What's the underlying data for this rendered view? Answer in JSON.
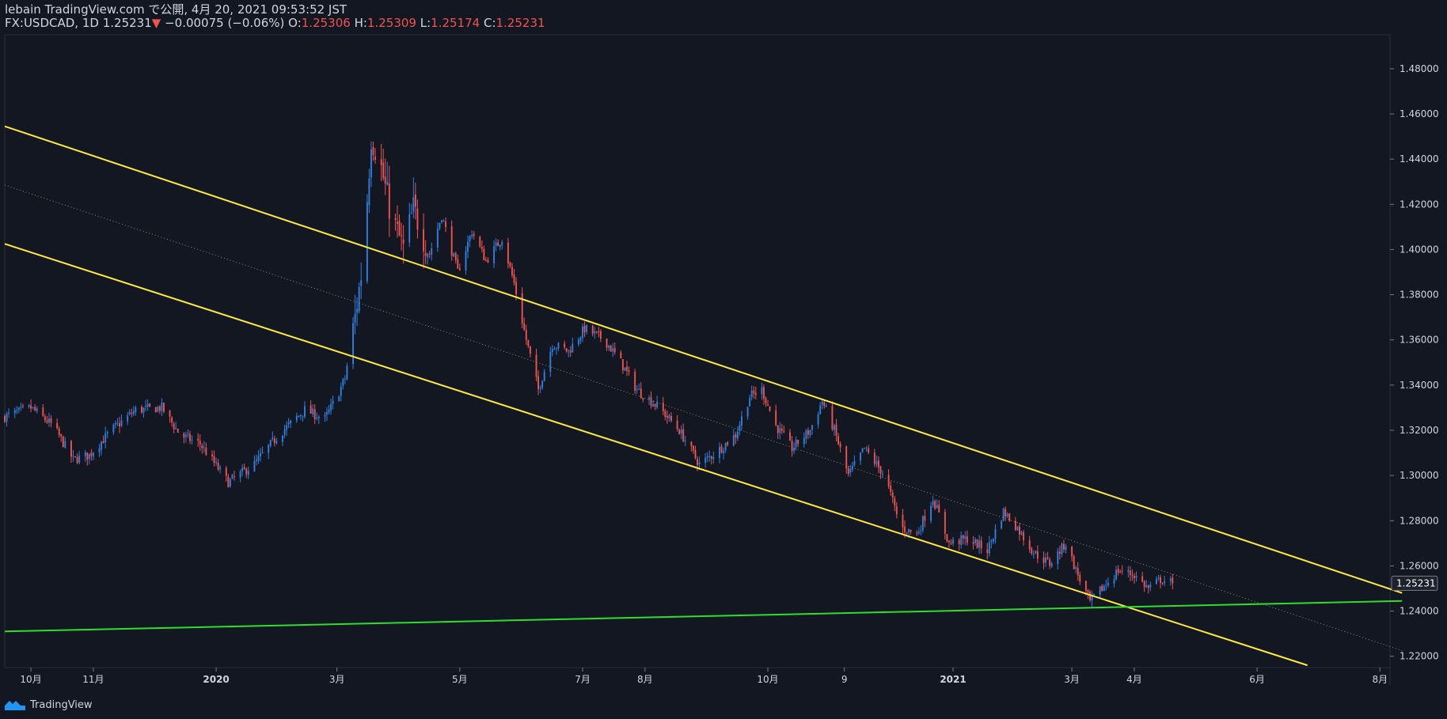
{
  "header": {
    "publisher_line": "lebain TradingView.com で公開, 4月 20, 2021 09:53:52 JST",
    "symbol": "FX:USDCAD, 1D",
    "last": "1.25231",
    "arrow": "▼",
    "change": "−0.00075 (−0.06%)",
    "o_label": "O:",
    "o_value": "1.25306",
    "h_label": "H:",
    "h_value": "1.25309",
    "l_label": "L:",
    "l_value": "1.25174",
    "c_label": "C:",
    "c_value": "1.25231"
  },
  "footer": {
    "brand": "TradingView",
    "logo_icon": "tradingview-logo-icon"
  },
  "colors": {
    "background": "#131722",
    "up": "#2f7fde",
    "down": "#ef5350",
    "channel": "#ffeb3b",
    "support": "#2ede2e",
    "axis_text": "#d1d4dc",
    "grid_border": "#2a2e39"
  },
  "chart_data": {
    "type": "candlestick",
    "symbol": "FX:USDCAD",
    "interval": "1D",
    "ylim": [
      1.215,
      1.495
    ],
    "xlim": [
      "2019-09-18",
      "2021-08-06"
    ],
    "y_ticks": [
      "1.22000",
      "1.24000",
      "1.26000",
      "1.28000",
      "1.30000",
      "1.32000",
      "1.34000",
      "1.36000",
      "1.38000",
      "1.40000",
      "1.42000",
      "1.44000",
      "1.46000",
      "1.48000"
    ],
    "x_ticks": [
      {
        "label": "10月",
        "date": "2019-10-01"
      },
      {
        "label": "11月",
        "date": "2019-11-01"
      },
      {
        "label": "2020",
        "date": "2020-01-01"
      },
      {
        "label": "3月",
        "date": "2020-03-01"
      },
      {
        "label": "5月",
        "date": "2020-05-01"
      },
      {
        "label": "7月",
        "date": "2020-07-01"
      },
      {
        "label": "8月",
        "date": "2020-08-01"
      },
      {
        "label": "10月",
        "date": "2020-10-01"
      },
      {
        "label": "9",
        "date": "2020-11-08"
      },
      {
        "label": "2021",
        "date": "2021-01-01"
      },
      {
        "label": "3月",
        "date": "2021-03-01"
      },
      {
        "label": "4月",
        "date": "2021-04-01"
      },
      {
        "label": "6月",
        "date": "2021-06-01"
      },
      {
        "label": "8月",
        "date": "2021-08-01"
      }
    ],
    "close_path": [
      [
        "2019-09-18",
        1.326
      ],
      [
        "2019-10-01",
        1.33
      ],
      [
        "2019-10-12",
        1.322
      ],
      [
        "2019-10-22",
        1.307
      ],
      [
        "2019-10-30",
        1.309
      ],
      [
        "2019-11-10",
        1.32
      ],
      [
        "2019-11-22",
        1.329
      ],
      [
        "2019-12-05",
        1.33
      ],
      [
        "2019-12-14",
        1.318
      ],
      [
        "2019-12-24",
        1.314
      ],
      [
        "2020-01-07",
        1.297
      ],
      [
        "2020-01-20",
        1.305
      ],
      [
        "2020-02-01",
        1.318
      ],
      [
        "2020-02-14",
        1.329
      ],
      [
        "2020-02-24",
        1.325
      ],
      [
        "2020-03-01",
        1.335
      ],
      [
        "2020-03-05",
        1.343
      ],
      [
        "2020-03-10",
        1.37
      ],
      [
        "2020-03-14",
        1.395
      ],
      [
        "2020-03-18",
        1.45
      ],
      [
        "2020-03-22",
        1.44
      ],
      [
        "2020-03-28",
        1.415
      ],
      [
        "2020-04-03",
        1.4
      ],
      [
        "2020-04-08",
        1.418
      ],
      [
        "2020-04-16",
        1.398
      ],
      [
        "2020-04-22",
        1.415
      ],
      [
        "2020-04-30",
        1.39
      ],
      [
        "2020-05-07",
        1.408
      ],
      [
        "2020-05-14",
        1.395
      ],
      [
        "2020-05-22",
        1.405
      ],
      [
        "2020-05-28",
        1.385
      ],
      [
        "2020-06-03",
        1.36
      ],
      [
        "2020-06-09",
        1.338
      ],
      [
        "2020-06-16",
        1.358
      ],
      [
        "2020-06-24",
        1.355
      ],
      [
        "2020-07-02",
        1.365
      ],
      [
        "2020-07-12",
        1.36
      ],
      [
        "2020-07-20",
        1.35
      ],
      [
        "2020-07-28",
        1.338
      ],
      [
        "2020-08-08",
        1.33
      ],
      [
        "2020-08-18",
        1.32
      ],
      [
        "2020-08-28",
        1.305
      ],
      [
        "2020-09-05",
        1.31
      ],
      [
        "2020-09-15",
        1.318
      ],
      [
        "2020-09-22",
        1.335
      ],
      [
        "2020-09-28",
        1.338
      ],
      [
        "2020-10-05",
        1.322
      ],
      [
        "2020-10-13",
        1.312
      ],
      [
        "2020-10-22",
        1.32
      ],
      [
        "2020-10-28",
        1.333
      ],
      [
        "2020-11-03",
        1.32
      ],
      [
        "2020-11-10",
        1.3
      ],
      [
        "2020-11-18",
        1.312
      ],
      [
        "2020-11-28",
        1.3
      ],
      [
        "2020-12-06",
        1.277
      ],
      [
        "2020-12-14",
        1.274
      ],
      [
        "2020-12-22",
        1.29
      ],
      [
        "2020-12-30",
        1.27
      ],
      [
        "2021-01-08",
        1.272
      ],
      [
        "2021-01-18",
        1.267
      ],
      [
        "2021-01-26",
        1.284
      ],
      [
        "2021-02-01",
        1.278
      ],
      [
        "2021-02-10",
        1.266
      ],
      [
        "2021-02-18",
        1.261
      ],
      [
        "2021-02-26",
        1.27
      ],
      [
        "2021-03-03",
        1.258
      ],
      [
        "2021-03-10",
        1.244
      ],
      [
        "2021-03-16",
        1.25
      ],
      [
        "2021-03-24",
        1.258
      ],
      [
        "2021-04-01",
        1.256
      ],
      [
        "2021-04-08",
        1.25
      ],
      [
        "2021-04-14",
        1.254
      ],
      [
        "2021-04-20",
        1.25231
      ]
    ],
    "last_price": 1.25231,
    "last_price_label": "1.25231",
    "trendlines": [
      {
        "name": "channel-upper",
        "style": "solid",
        "points": [
          [
            "2019-09-18",
            1.4545
          ],
          [
            "2021-08-12",
            1.248
          ]
        ]
      },
      {
        "name": "channel-middle",
        "style": "dotted",
        "points": [
          [
            "2019-09-18",
            1.4285
          ],
          [
            "2021-08-12",
            1.2225
          ]
        ]
      },
      {
        "name": "channel-lower",
        "style": "solid",
        "points": [
          [
            "2019-09-18",
            1.4025
          ],
          [
            "2021-06-26",
            1.216
          ]
        ]
      },
      {
        "name": "support",
        "style": "solid",
        "points": [
          [
            "2019-09-18",
            1.231
          ],
          [
            "2021-08-12",
            1.2445
          ]
        ]
      }
    ]
  }
}
